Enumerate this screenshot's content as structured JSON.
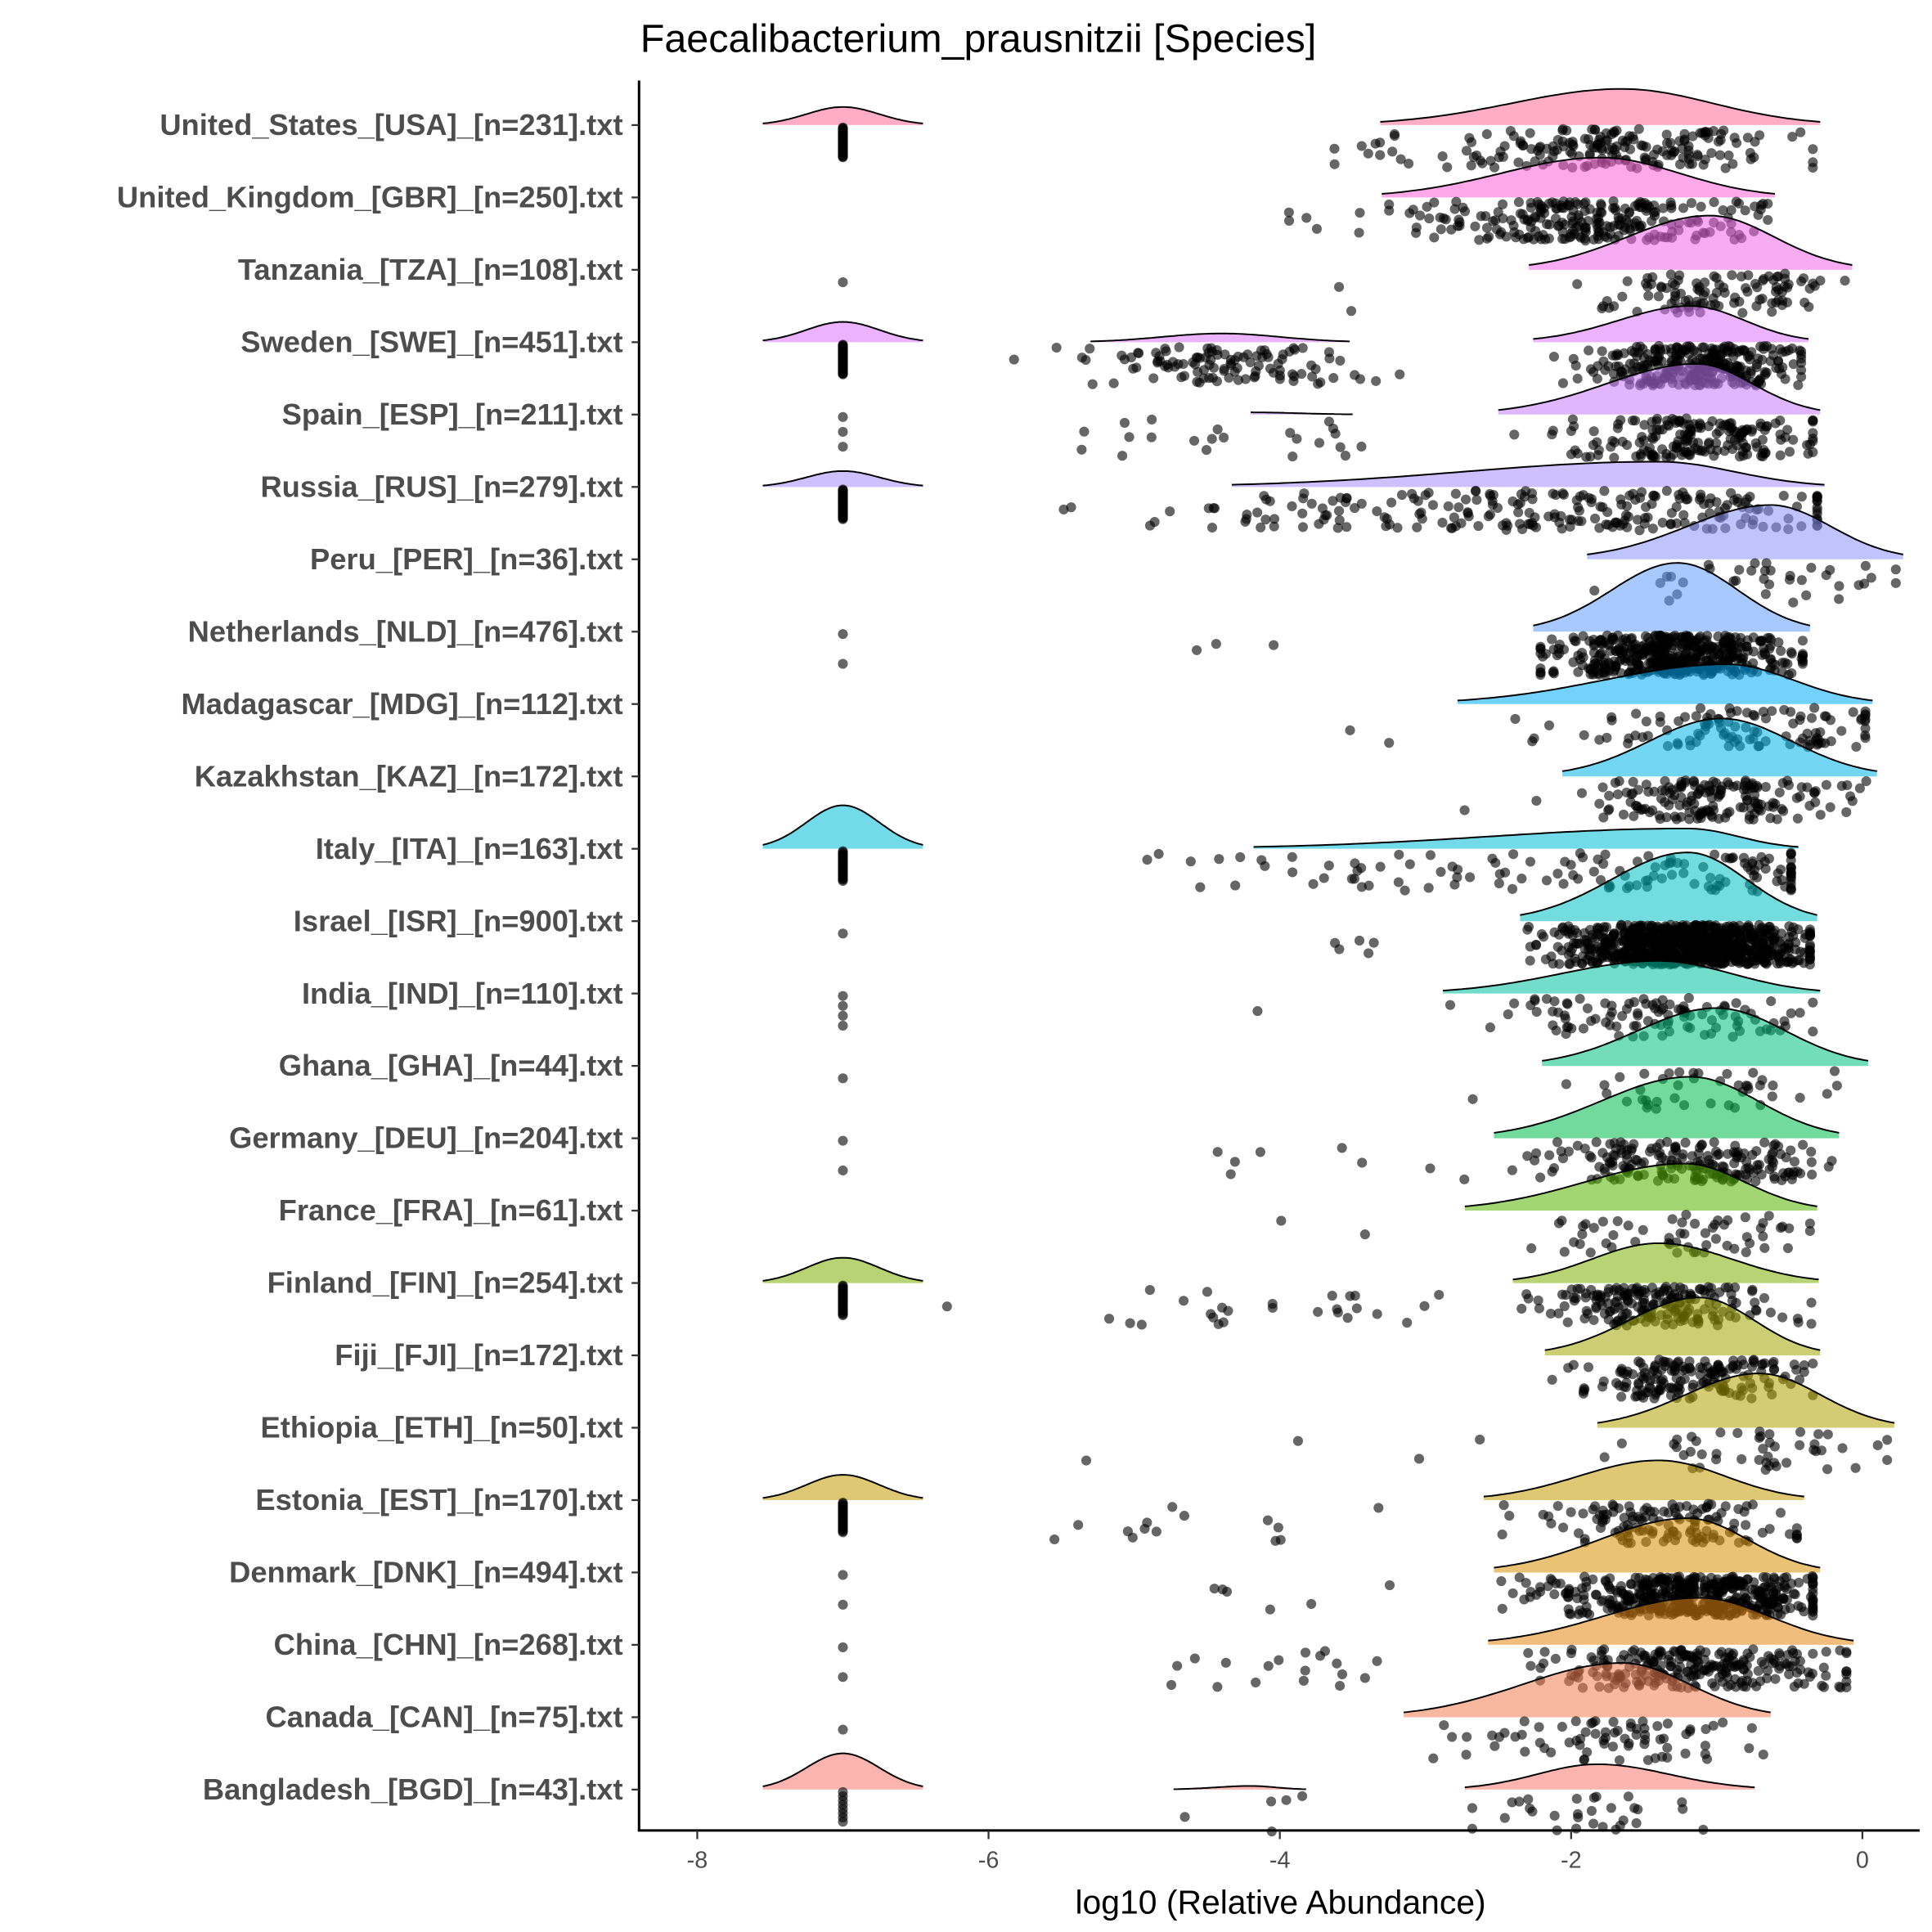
{
  "chart_data": {
    "type": "raincloud",
    "title": "Faecalibacterium_prausnitzii [Species]",
    "xlabel": "log10 (Relative Abundance)",
    "ylabel": "",
    "xlim": [
      -8.4,
      0.4
    ],
    "xticks": [
      -8,
      -6,
      -4,
      -2,
      0
    ],
    "xtick_labels": [
      "-8",
      "-6",
      "-4",
      "-2",
      "0"
    ],
    "zero_value": -7,
    "fill_alpha": 0.55,
    "point_alpha": 0.6,
    "series": [
      {
        "label": "United_States_[USA]_[n=231].txt",
        "color": "#FF6A98",
        "n": 231,
        "mode": -1.65,
        "lo": -3.31,
        "hi": -0.29,
        "height": 0.5,
        "zero_ridge": 0.25,
        "zeros": 45,
        "sec": {
          "mode": -3.3,
          "sd": 0.3,
          "count": 12
        }
      },
      {
        "label": "United_Kingdom_[GBR]_[n=250].txt",
        "color": "#FB61D7",
        "n": 250,
        "mode": -1.8,
        "lo": -3.3,
        "hi": -0.6,
        "height": 0.55,
        "zero_ridge": 0,
        "zeros": 0,
        "sec": {
          "mode": -3.5,
          "sd": 0.4,
          "count": 10
        }
      },
      {
        "label": "Tanzania_[TZA]_[n=108].txt",
        "color": "#F066EA",
        "n": 108,
        "mode": -1.05,
        "lo": -2.29,
        "hi": -0.07,
        "height": 0.75,
        "zero_ridge": 0,
        "zeros": 1,
        "sec": {
          "mode": -3.5,
          "sd": 0.4,
          "count": 2
        }
      },
      {
        "label": "Sweden_[SWE]_[n=451].txt",
        "color": "#DB72FB",
        "n": 451,
        "mode": -1.18,
        "lo": -2.26,
        "hi": -0.37,
        "height": 0.5,
        "zero_ridge": 0.28,
        "zeros": 45,
        "sec": {
          "mode": -4.4,
          "sd": 0.5,
          "count": 110,
          "lo": -5.3,
          "hi": -3.52,
          "height": 0.12
        }
      },
      {
        "label": "Spain_[ESP]_[n=211].txt",
        "color": "#C77CFF",
        "n": 211,
        "mode": -1.14,
        "lo": -2.5,
        "hi": -0.29,
        "height": 0.7,
        "zero_ridge": 0,
        "zeros": 3,
        "sec": {
          "mode": -4.2,
          "sd": 0.6,
          "count": 22,
          "lo": -4.2,
          "hi": -3.5,
          "height": 0.03
        }
      },
      {
        "label": "Russia_[RUS]_[n=279].txt",
        "color": "#A58AFF",
        "n": 279,
        "mode": -1.4,
        "lo": -4.33,
        "hi": -0.26,
        "height": 0.35,
        "zero_ridge": 0.22,
        "zeros": 40,
        "sec": {
          "mode": -3.3,
          "sd": 0.9,
          "count": 90
        }
      },
      {
        "label": "Peru_[PER]_[n=36].txt",
        "color": "#8B93FF",
        "n": 36,
        "mode": -0.63,
        "lo": -1.89,
        "hi": 0.28,
        "height": 0.75,
        "zero_ridge": 0,
        "zeros": 0,
        "sec": {
          "mode": -1.5,
          "sd": 0.3,
          "count": 0
        }
      },
      {
        "label": "Netherlands_[NLD]_[n=476].txt",
        "color": "#619CFF",
        "n": 476,
        "mode": -1.27,
        "lo": -2.26,
        "hi": -0.36,
        "height": 0.95,
        "zero_ridge": 0,
        "zeros": 2,
        "sec": {
          "mode": -4.3,
          "sd": 0.3,
          "count": 3
        }
      },
      {
        "label": "Madagascar_[MDG]_[n=112].txt",
        "color": "#00ADFA",
        "n": 112,
        "mode": -0.93,
        "lo": -2.78,
        "hi": 0.07,
        "height": 0.55,
        "zero_ridge": 0,
        "zeros": 0,
        "sec": {
          "mode": -3.4,
          "sd": 0.3,
          "count": 2
        }
      },
      {
        "label": "Kazakhstan_[KAZ]_[n=172].txt",
        "color": "#00B7E9",
        "n": 172,
        "mode": -0.97,
        "lo": -2.06,
        "hi": 0.1,
        "height": 0.8,
        "zero_ridge": 0,
        "zeros": 0,
        "sec": {
          "mode": -2.5,
          "sd": 0.2,
          "count": 2
        }
      },
      {
        "label": "Italy_[ITA]_[n=163].txt",
        "color": "#00BCD8",
        "n": 163,
        "mode": -1.2,
        "lo": -4.18,
        "hi": -0.44,
        "height": 0.28,
        "zero_ridge": 0.6,
        "zeros": 28,
        "sec": {
          "mode": -3.5,
          "sd": 0.7,
          "count": 35
        }
      },
      {
        "label": "Israel_[ISR]_[n=900].txt",
        "color": "#00BFC4",
        "n": 900,
        "mode": -1.2,
        "lo": -2.35,
        "hi": -0.31,
        "height": 0.95,
        "zero_ridge": 0,
        "zeros": 1,
        "sec": {
          "mode": -3.4,
          "sd": 0.3,
          "count": 5
        }
      },
      {
        "label": "India_[IND]_[n=110].txt",
        "color": "#00C1A3",
        "n": 110,
        "mode": -1.4,
        "lo": -2.88,
        "hi": -0.29,
        "height": 0.45,
        "zero_ridge": 0,
        "zeros": 4,
        "sec": {
          "mode": -4.2,
          "sd": 0.1,
          "count": 1
        }
      },
      {
        "label": "Ghana_[GHA]_[n=44].txt",
        "color": "#00BF7D",
        "n": 44,
        "mode": -1.0,
        "lo": -2.2,
        "hi": 0.04,
        "height": 0.8,
        "zero_ridge": 0,
        "zeros": 1,
        "sec": {
          "mode": -2.5,
          "sd": 0.2,
          "count": 2
        }
      },
      {
        "label": "Germany_[DEU]_[n=204].txt",
        "color": "#00BB4E",
        "n": 204,
        "mode": -1.18,
        "lo": -2.53,
        "hi": -0.16,
        "height": 0.85,
        "zero_ridge": 0,
        "zeros": 2,
        "sec": {
          "mode": -3.8,
          "sd": 0.5,
          "count": 8
        }
      },
      {
        "label": "France_[FRA]_[n=61].txt",
        "color": "#53B400",
        "n": 61,
        "mode": -1.22,
        "lo": -2.73,
        "hi": -0.31,
        "height": 0.65,
        "zero_ridge": 0,
        "zeros": 0,
        "sec": {
          "mode": -3.8,
          "sd": 0.2,
          "count": 2
        }
      },
      {
        "label": "Finland_[FIN]_[n=254].txt",
        "color": "#7CAE00",
        "n": 254,
        "mode": -1.4,
        "lo": -2.4,
        "hi": -0.3,
        "height": 0.55,
        "zero_ridge": 0.35,
        "zeros": 30,
        "sec": {
          "mode": -4.0,
          "sd": 0.8,
          "count": 28
        }
      },
      {
        "label": "Fiji_[FJI]_[n=172].txt",
        "color": "#A3A500",
        "n": 172,
        "mode": -1.12,
        "lo": -2.18,
        "hi": -0.29,
        "height": 0.8,
        "zero_ridge": 0,
        "zeros": 0,
        "sec": {
          "mode": -2,
          "sd": 0.1,
          "count": 0
        }
      },
      {
        "label": "Ethiopia_[ETH]_[n=50].txt",
        "color": "#B3A000",
        "n": 50,
        "mode": -0.71,
        "lo": -1.82,
        "hi": 0.22,
        "height": 0.75,
        "zero_ridge": 0,
        "zeros": 0,
        "sec": {
          "mode": -4.2,
          "sd": 0.7,
          "count": 4
        }
      },
      {
        "label": "Estonia_[EST]_[n=170].txt",
        "color": "#C49A00",
        "n": 170,
        "mode": -1.4,
        "lo": -2.6,
        "hi": -0.4,
        "height": 0.55,
        "zero_ridge": 0.35,
        "zeros": 28,
        "sec": {
          "mode": -4.5,
          "sd": 0.5,
          "count": 14
        }
      },
      {
        "label": "Denmark_[DNK]_[n=494].txt",
        "color": "#D89000",
        "n": 494,
        "mode": -1.2,
        "lo": -2.53,
        "hi": -0.29,
        "height": 0.75,
        "zero_ridge": 0,
        "zeros": 2,
        "sec": {
          "mode": -4.0,
          "sd": 0.6,
          "count": 6
        }
      },
      {
        "label": "China_[CHN]_[n=268].txt",
        "color": "#E68613",
        "n": 268,
        "mode": -1.12,
        "lo": -2.57,
        "hi": -0.06,
        "height": 0.65,
        "zero_ridge": 0,
        "zeros": 2,
        "sec": {
          "mode": -4.0,
          "sd": 0.5,
          "count": 18
        }
      },
      {
        "label": "Canada_[CAN]_[n=75].txt",
        "color": "#F27D52",
        "n": 75,
        "mode": -1.65,
        "lo": -3.15,
        "hi": -0.63,
        "height": 0.75,
        "zero_ridge": 0,
        "zeros": 1,
        "sec": {
          "mode": -3.0,
          "sd": 0.2,
          "count": 3
        }
      },
      {
        "label": "Bangladesh_[BGD]_[n=43].txt",
        "color": "#F8766D",
        "n": 43,
        "mode": -1.82,
        "lo": -2.73,
        "hi": -0.74,
        "height": 0.35,
        "zero_ridge": 0.5,
        "zeros": 8,
        "sec": {
          "mode": -4.2,
          "sd": 0.5,
          "count": 5,
          "lo": -4.73,
          "hi": -3.82,
          "height": 0.05
        }
      }
    ]
  }
}
